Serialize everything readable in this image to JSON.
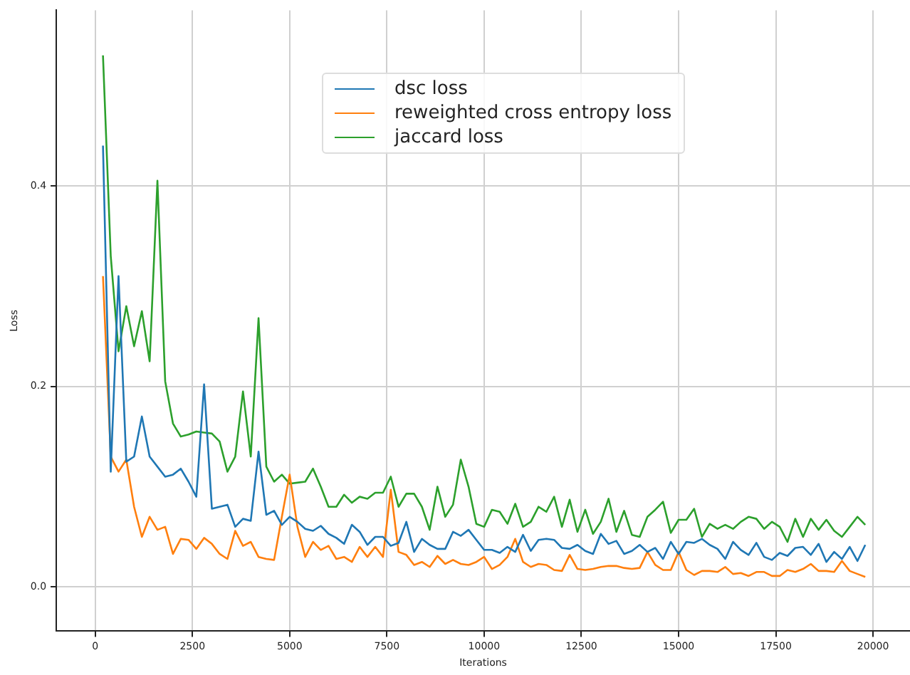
{
  "chart_data": {
    "type": "line",
    "xlabel": "Iterations",
    "ylabel": "Loss",
    "x": [
      200,
      400,
      600,
      800,
      1000,
      1200,
      1400,
      1600,
      1800,
      2000,
      2200,
      2400,
      2600,
      2800,
      3000,
      3200,
      3400,
      3600,
      3800,
      4000,
      4200,
      4400,
      4600,
      4800,
      5000,
      5200,
      5400,
      5600,
      5800,
      6000,
      6200,
      6400,
      6600,
      6800,
      7000,
      7200,
      7400,
      7600,
      7800,
      8000,
      8200,
      8400,
      8600,
      8800,
      9000,
      9200,
      9400,
      9600,
      9800,
      10000,
      10200,
      10400,
      10600,
      10800,
      11000,
      11200,
      11400,
      11600,
      11800,
      12000,
      12200,
      12400,
      12600,
      12800,
      13000,
      13200,
      13400,
      13600,
      13800,
      14000,
      14200,
      14400,
      14600,
      14800,
      15000,
      15200,
      15400,
      15600,
      15800,
      16000,
      16200,
      16400,
      16600,
      16800,
      17000,
      17200,
      17400,
      17600,
      17800,
      18000,
      18200,
      18400,
      18600,
      18800,
      19000,
      19200,
      19400,
      19600,
      19800
    ],
    "series": [
      {
        "name": "dsc loss",
        "color": "#1f77b4",
        "values": [
          0.44,
          0.115,
          0.31,
          0.125,
          0.13,
          0.17,
          0.13,
          0.12,
          0.11,
          0.112,
          0.118,
          0.105,
          0.09,
          0.202,
          0.078,
          0.08,
          0.082,
          0.06,
          0.068,
          0.066,
          0.135,
          0.072,
          0.076,
          0.062,
          0.07,
          0.065,
          0.058,
          0.056,
          0.061,
          0.053,
          0.049,
          0.043,
          0.062,
          0.055,
          0.042,
          0.05,
          0.05,
          0.041,
          0.044,
          0.065,
          0.035,
          0.048,
          0.042,
          0.038,
          0.038,
          0.055,
          0.051,
          0.057,
          0.047,
          0.037,
          0.037,
          0.034,
          0.04,
          0.035,
          0.052,
          0.036,
          0.047,
          0.048,
          0.047,
          0.039,
          0.038,
          0.042,
          0.036,
          0.033,
          0.053,
          0.043,
          0.046,
          0.033,
          0.036,
          0.042,
          0.035,
          0.039,
          0.028,
          0.045,
          0.033,
          0.045,
          0.044,
          0.048,
          0.042,
          0.038,
          0.028,
          0.045,
          0.037,
          0.032,
          0.044,
          0.03,
          0.027,
          0.034,
          0.031,
          0.039,
          0.04,
          0.032,
          0.043,
          0.025,
          0.035,
          0.028,
          0.04,
          0.026,
          0.042
        ]
      },
      {
        "name": "reweighted cross entropy loss",
        "color": "#ff7f0e",
        "values": [
          0.31,
          0.13,
          0.115,
          0.127,
          0.08,
          0.05,
          0.07,
          0.057,
          0.06,
          0.033,
          0.048,
          0.047,
          0.038,
          0.049,
          0.043,
          0.033,
          0.028,
          0.056,
          0.041,
          0.045,
          0.03,
          0.028,
          0.027,
          0.07,
          0.112,
          0.06,
          0.03,
          0.045,
          0.037,
          0.041,
          0.028,
          0.03,
          0.025,
          0.04,
          0.03,
          0.04,
          0.03,
          0.097,
          0.035,
          0.032,
          0.022,
          0.025,
          0.02,
          0.031,
          0.023,
          0.027,
          0.023,
          0.022,
          0.025,
          0.03,
          0.018,
          0.022,
          0.03,
          0.048,
          0.025,
          0.02,
          0.023,
          0.022,
          0.017,
          0.016,
          0.032,
          0.018,
          0.017,
          0.018,
          0.02,
          0.021,
          0.021,
          0.019,
          0.018,
          0.019,
          0.035,
          0.022,
          0.017,
          0.017,
          0.035,
          0.017,
          0.012,
          0.016,
          0.016,
          0.015,
          0.02,
          0.013,
          0.014,
          0.011,
          0.015,
          0.015,
          0.011,
          0.011,
          0.017,
          0.015,
          0.018,
          0.023,
          0.016,
          0.016,
          0.015,
          0.026,
          0.016,
          0.013,
          0.01
        ]
      },
      {
        "name": "jaccard loss",
        "color": "#2ca02c",
        "values": [
          0.53,
          0.33,
          0.235,
          0.28,
          0.24,
          0.275,
          0.225,
          0.405,
          0.205,
          0.163,
          0.15,
          0.152,
          0.155,
          0.154,
          0.153,
          0.145,
          0.115,
          0.13,
          0.195,
          0.13,
          0.268,
          0.12,
          0.105,
          0.112,
          0.103,
          0.104,
          0.105,
          0.118,
          0.1,
          0.08,
          0.08,
          0.092,
          0.084,
          0.09,
          0.088,
          0.094,
          0.094,
          0.11,
          0.08,
          0.093,
          0.093,
          0.08,
          0.057,
          0.1,
          0.07,
          0.082,
          0.127,
          0.1,
          0.063,
          0.06,
          0.077,
          0.075,
          0.063,
          0.083,
          0.06,
          0.065,
          0.08,
          0.075,
          0.09,
          0.06,
          0.087,
          0.055,
          0.077,
          0.053,
          0.065,
          0.088,
          0.055,
          0.076,
          0.052,
          0.05,
          0.07,
          0.077,
          0.085,
          0.054,
          0.067,
          0.067,
          0.078,
          0.05,
          0.063,
          0.058,
          0.062,
          0.058,
          0.065,
          0.07,
          0.068,
          0.058,
          0.065,
          0.06,
          0.045,
          0.068,
          0.05,
          0.068,
          0.057,
          0.067,
          0.056,
          0.05,
          0.06,
          0.07,
          0.062
        ]
      }
    ],
    "xlim": [
      -1000,
      20950
    ],
    "xticks": [
      0,
      2500,
      5000,
      7500,
      10000,
      12500,
      15000,
      17500,
      20000
    ],
    "ylim": [
      -0.044,
      0.575
    ],
    "yticks": [
      {
        "value": 0,
        "label": "0.0"
      },
      {
        "value": 0.2,
        "label": "0.2"
      },
      {
        "value": 0.4,
        "label": "0.4"
      }
    ],
    "grid": true,
    "legend": "top",
    "marker": "none",
    "line_style": "solid"
  }
}
